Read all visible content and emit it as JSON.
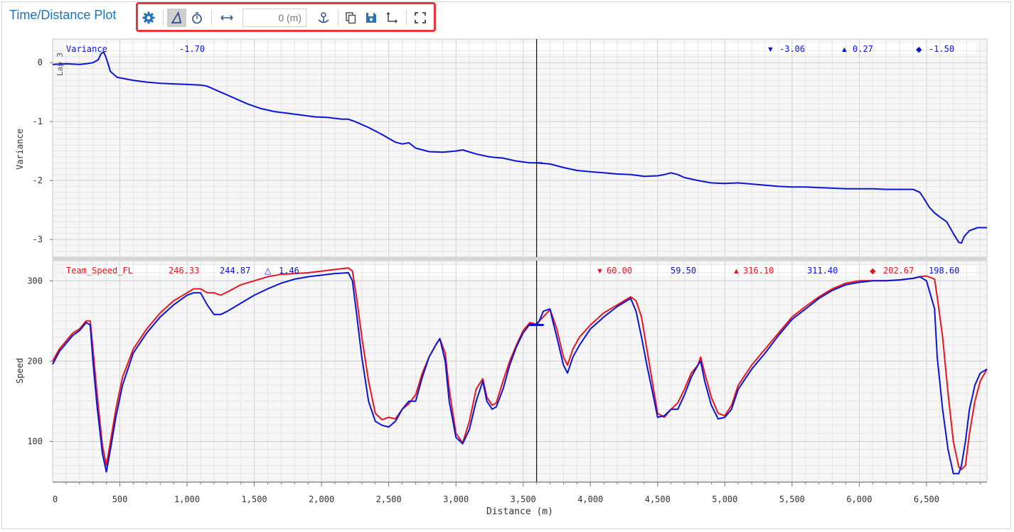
{
  "window": {
    "title": "Time/Distance Plot"
  },
  "toolbar": {
    "distance_value": "",
    "distance_placeholder": "0 (m)",
    "icons": [
      "gear-icon",
      "delta-icon",
      "stopwatch-icon",
      "horizontal-arrows-icon",
      "anchor-icon",
      "copy-icon",
      "save-icon",
      "axes-icon",
      "fullscreen-icon"
    ]
  },
  "colors": {
    "blue": "#0a14d6",
    "red": "#e8141e",
    "accent": "#1d74b9",
    "highlight": "#e8363d"
  },
  "chart_data": [
    {
      "type": "line",
      "ylabel": "Variance",
      "lap_label": "Lap 3",
      "xlim": [
        0,
        6950
      ],
      "ylim": [
        -3.3,
        0.4
      ],
      "yticks": [
        0,
        -1,
        -2,
        -3
      ],
      "cursor_x": 3600,
      "header": {
        "name": "Variance",
        "value": "-1.70",
        "min": "-3.06",
        "max": "0.27",
        "avg": "-1.50"
      },
      "series": [
        {
          "color": "#0a14d6",
          "x": [
            0,
            100,
            200,
            250,
            300,
            340,
            360,
            380,
            395,
            410,
            430,
            480,
            600,
            700,
            800,
            900,
            1000,
            1100,
            1150,
            1250,
            1350,
            1450,
            1550,
            1650,
            1750,
            1850,
            1950,
            2050,
            2150,
            2200,
            2250,
            2350,
            2450,
            2550,
            2600,
            2650,
            2700,
            2800,
            2900,
            3000,
            3050,
            3150,
            3250,
            3350,
            3450,
            3550,
            3600,
            3700,
            3800,
            3900,
            4000,
            4100,
            4200,
            4300,
            4400,
            4500,
            4550,
            4600,
            4650,
            4700,
            4800,
            4900,
            5000,
            5100,
            5200,
            5300,
            5400,
            5500,
            5600,
            5700,
            5800,
            5900,
            6000,
            6100,
            6200,
            6300,
            6400,
            6450,
            6480,
            6520,
            6560,
            6600,
            6650,
            6700,
            6740,
            6760,
            6780,
            6820,
            6880,
            6950
          ],
          "y": [
            -0.03,
            -0.02,
            -0.03,
            -0.02,
            0.0,
            0.05,
            0.15,
            0.18,
            0.1,
            0.0,
            -0.15,
            -0.25,
            -0.3,
            -0.33,
            -0.35,
            -0.36,
            -0.37,
            -0.38,
            -0.4,
            -0.5,
            -0.6,
            -0.7,
            -0.78,
            -0.83,
            -0.86,
            -0.89,
            -0.92,
            -0.93,
            -0.96,
            -0.96,
            -1.0,
            -1.1,
            -1.22,
            -1.35,
            -1.38,
            -1.36,
            -1.45,
            -1.51,
            -1.52,
            -1.5,
            -1.48,
            -1.55,
            -1.6,
            -1.62,
            -1.67,
            -1.7,
            -1.7,
            -1.72,
            -1.78,
            -1.83,
            -1.85,
            -1.87,
            -1.89,
            -1.9,
            -1.93,
            -1.92,
            -1.9,
            -1.87,
            -1.9,
            -1.95,
            -2.0,
            -2.04,
            -2.05,
            -2.04,
            -2.06,
            -2.08,
            -2.1,
            -2.11,
            -2.11,
            -2.12,
            -2.13,
            -2.14,
            -2.14,
            -2.14,
            -2.15,
            -2.15,
            -2.15,
            -2.2,
            -2.3,
            -2.45,
            -2.55,
            -2.62,
            -2.7,
            -2.9,
            -3.05,
            -3.06,
            -2.95,
            -2.85,
            -2.8,
            -2.8
          ]
        }
      ]
    },
    {
      "type": "line",
      "ylabel": "Speed",
      "xlabel": "Distance (m)",
      "xlim": [
        0,
        6950
      ],
      "ylim": [
        50,
        325
      ],
      "yticks": [
        100,
        200,
        300
      ],
      "xticks": [
        0,
        500,
        1000,
        1500,
        2000,
        2500,
        3000,
        3500,
        4000,
        4500,
        5000,
        5500,
        6000,
        6500
      ],
      "xtick_labels": [
        "0",
        "500",
        "1,000",
        "1,500",
        "2,000",
        "2,500",
        "3,000",
        "3,500",
        "4,000",
        "4,500",
        "5,000",
        "5,500",
        "6,000",
        "6,500"
      ],
      "cursor_x": 3600,
      "header": {
        "name": "Team_Speed_FL",
        "red_value": "246.33",
        "blue_value": "244.87",
        "delta": "1.46",
        "min_red": "60.00",
        "min_blue": "59.50",
        "max_red": "316.10",
        "max_blue": "311.40",
        "avg_red": "202.67",
        "avg_blue": "198.60"
      },
      "series": [
        {
          "color": "#e8141e",
          "x": [
            0,
            50,
            100,
            150,
            200,
            250,
            280,
            300,
            330,
            370,
            400,
            430,
            470,
            520,
            600,
            700,
            800,
            900,
            1000,
            1050,
            1100,
            1150,
            1200,
            1250,
            1300,
            1400,
            1500,
            1600,
            1700,
            1800,
            1900,
            2000,
            2100,
            2200,
            2230,
            2260,
            2300,
            2350,
            2400,
            2450,
            2500,
            2550,
            2600,
            2650,
            2700,
            2750,
            2800,
            2850,
            2880,
            2920,
            2950,
            3000,
            3050,
            3100,
            3150,
            3200,
            3230,
            3270,
            3300,
            3350,
            3400,
            3450,
            3500,
            3550,
            3600,
            3620,
            3650,
            3700,
            3720,
            3750,
            3800,
            3830,
            3870,
            3920,
            4000,
            4100,
            4200,
            4300,
            4340,
            4380,
            4420,
            4470,
            4500,
            4550,
            4600,
            4650,
            4700,
            4750,
            4800,
            4820,
            4850,
            4900,
            4950,
            5000,
            5050,
            5100,
            5200,
            5300,
            5400,
            5500,
            5600,
            5700,
            5800,
            5900,
            6000,
            6100,
            6200,
            6300,
            6400,
            6450,
            6500,
            6560,
            6580,
            6620,
            6660,
            6700,
            6740,
            6760,
            6790,
            6820,
            6860,
            6900,
            6950
          ],
          "y": [
            200,
            215,
            225,
            235,
            240,
            250,
            250,
            215,
            160,
            95,
            70,
            100,
            140,
            180,
            215,
            240,
            260,
            275,
            285,
            290,
            290,
            285,
            285,
            282,
            286,
            295,
            300,
            305,
            308,
            309,
            310,
            312,
            314,
            316,
            312,
            280,
            230,
            175,
            135,
            127,
            130,
            128,
            140,
            147,
            158,
            185,
            205,
            220,
            228,
            210,
            165,
            110,
            98,
            125,
            165,
            178,
            155,
            145,
            148,
            175,
            200,
            220,
            238,
            248,
            246,
            250,
            255,
            264,
            255,
            240,
            205,
            195,
            215,
            230,
            245,
            260,
            270,
            280,
            275,
            255,
            215,
            165,
            135,
            130,
            140,
            148,
            165,
            185,
            195,
            205,
            185,
            155,
            135,
            132,
            145,
            170,
            195,
            215,
            235,
            255,
            268,
            280,
            290,
            297,
            300,
            300,
            300,
            301,
            303,
            305,
            306,
            302,
            280,
            230,
            160,
            100,
            68,
            65,
            70,
            110,
            150,
            175,
            190
          ]
        },
        {
          "color": "#0a14d6",
          "x": [
            0,
            50,
            100,
            150,
            200,
            250,
            280,
            300,
            330,
            370,
            400,
            430,
            470,
            520,
            600,
            700,
            800,
            900,
            1000,
            1050,
            1100,
            1150,
            1200,
            1250,
            1300,
            1400,
            1500,
            1600,
            1700,
            1800,
            1900,
            2000,
            2100,
            2200,
            2230,
            2260,
            2300,
            2350,
            2400,
            2450,
            2500,
            2550,
            2600,
            2650,
            2700,
            2750,
            2800,
            2850,
            2880,
            2920,
            2950,
            3000,
            3050,
            3100,
            3150,
            3200,
            3230,
            3270,
            3300,
            3350,
            3400,
            3450,
            3500,
            3550,
            3600,
            3620,
            3650,
            3700,
            3720,
            3750,
            3800,
            3830,
            3870,
            3920,
            4000,
            4100,
            4200,
            4300,
            4340,
            4380,
            4420,
            4470,
            4500,
            4550,
            4600,
            4650,
            4700,
            4750,
            4800,
            4820,
            4850,
            4900,
            4950,
            5000,
            5050,
            5100,
            5200,
            5300,
            5400,
            5500,
            5600,
            5700,
            5800,
            5900,
            6000,
            6100,
            6200,
            6300,
            6400,
            6450,
            6500,
            6560,
            6580,
            6620,
            6660,
            6700,
            6740,
            6760,
            6790,
            6820,
            6860,
            6900,
            6950
          ],
          "y": [
            196,
            212,
            222,
            232,
            238,
            248,
            245,
            200,
            145,
            85,
            62,
            90,
            130,
            170,
            210,
            235,
            255,
            270,
            282,
            285,
            285,
            270,
            258,
            258,
            262,
            272,
            282,
            290,
            297,
            302,
            305,
            307,
            309,
            310,
            300,
            260,
            205,
            150,
            125,
            120,
            118,
            125,
            140,
            150,
            150,
            180,
            205,
            220,
            228,
            200,
            150,
            105,
            97,
            115,
            150,
            175,
            150,
            140,
            143,
            165,
            195,
            218,
            235,
            246,
            245,
            250,
            262,
            265,
            250,
            230,
            195,
            185,
            205,
            220,
            240,
            255,
            268,
            278,
            262,
            230,
            195,
            155,
            130,
            132,
            140,
            140,
            158,
            180,
            195,
            200,
            175,
            145,
            128,
            130,
            140,
            165,
            190,
            210,
            232,
            252,
            265,
            278,
            288,
            295,
            298,
            300,
            300,
            301,
            303,
            305,
            300,
            265,
            205,
            140,
            90,
            60,
            60,
            70,
            100,
            140,
            170,
            185,
            190
          ]
        }
      ]
    }
  ]
}
